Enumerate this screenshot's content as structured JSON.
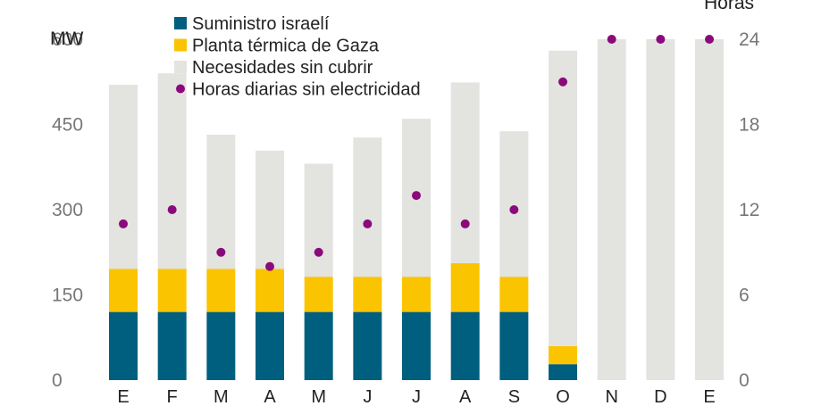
{
  "chart_data": {
    "type": "bar",
    "stacked": true,
    "categories": [
      "E",
      "F",
      "M",
      "A",
      "M",
      "J",
      "J",
      "A",
      "S",
      "O",
      "N",
      "D",
      "E"
    ],
    "series": [
      {
        "name": "Suministro israelí",
        "color": "#005f7e",
        "values": [
          120,
          120,
          120,
          120,
          120,
          120,
          120,
          120,
          120,
          28,
          0,
          0,
          0
        ]
      },
      {
        "name": "Planta térmica de Gaza",
        "color": "#fbc400",
        "values": [
          76,
          76,
          76,
          76,
          62,
          62,
          62,
          86,
          62,
          32,
          0,
          0,
          0
        ]
      },
      {
        "name": "Necesidades sin cubrir",
        "color": "#e3e3e0",
        "values": [
          324,
          344,
          236,
          208,
          199,
          245,
          278,
          318,
          256,
          520,
          600,
          600,
          600
        ]
      }
    ],
    "line_series": {
      "name": "Horas diarias sin electricidad",
      "color": "#8b0a7b",
      "axis": "right",
      "values": [
        11,
        12,
        9,
        8,
        9,
        11,
        13,
        11,
        12,
        21,
        24,
        24,
        24
      ]
    },
    "ylabel_left": "MW",
    "ylabel_right": "Horas",
    "ylim_left": [
      0,
      600
    ],
    "ylim_right": [
      0,
      24
    ],
    "yticks_left": [
      "0",
      "150",
      "300",
      "450",
      "600"
    ],
    "yticks_right": [
      "0",
      "6",
      "12",
      "18",
      "24"
    ],
    "legend_position": "top-left",
    "grid": false
  }
}
